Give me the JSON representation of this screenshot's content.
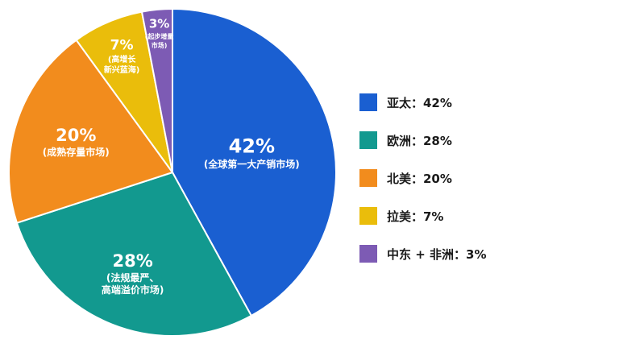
{
  "chart_data": {
    "type": "pie",
    "title": "",
    "start_angle_deg": 0,
    "direction": "clockwise",
    "slices": [
      {
        "key": "apac",
        "value": 42,
        "pct_label": "42%",
        "desc": "(全球第一大产销市场)",
        "legend": "亚太：42%",
        "color": "#1a5fd1"
      },
      {
        "key": "europe",
        "value": 28,
        "pct_label": "28%",
        "desc": "(法规最严、\n高端溢价市场)",
        "legend": "欧洲：28%",
        "color": "#12998f"
      },
      {
        "key": "north_america",
        "value": 20,
        "pct_label": "20%",
        "desc": "(成熟存量市场)",
        "legend": "北美：20%",
        "color": "#f28c1d"
      },
      {
        "key": "latam",
        "value": 7,
        "pct_label": "7%",
        "desc": "(高增长\n新兴蓝海)",
        "legend": "拉美：7%",
        "color": "#eabd0b"
      },
      {
        "key": "mea",
        "value": 3,
        "pct_label": "3%",
        "desc": "(起步增量\n市场)",
        "legend": "中东 + 非洲：3%",
        "color": "#7d5bb4"
      }
    ],
    "legend_position": "right"
  }
}
